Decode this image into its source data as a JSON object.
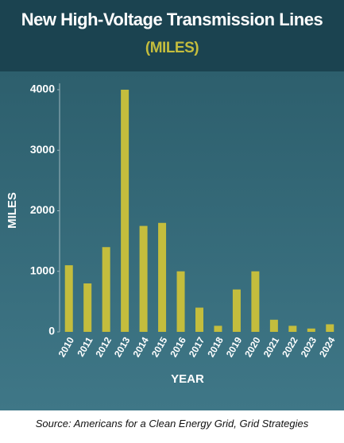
{
  "chart_data": {
    "type": "bar",
    "title": "New High-Voltage Transmission Lines",
    "title_unit": "(MILES)",
    "categories": [
      "2010",
      "2011",
      "2012",
      "2013",
      "2014",
      "2015",
      "2016",
      "2017",
      "2018",
      "2019",
      "2020",
      "2021",
      "2022",
      "2023",
      "2024"
    ],
    "values": [
      1100,
      800,
      1400,
      4000,
      1750,
      1800,
      1000,
      400,
      100,
      700,
      1000,
      200,
      100,
      55,
      125
    ],
    "color": "#c4bd3d",
    "ylim": [
      0,
      4000
    ],
    "yticks": [
      0,
      1000,
      2000,
      3000,
      4000
    ],
    "y_label": "MILES",
    "x_label": "YEAR",
    "grid": false,
    "source": "Source: Americans for a Clean Energy Grid, Grid Strategies"
  }
}
